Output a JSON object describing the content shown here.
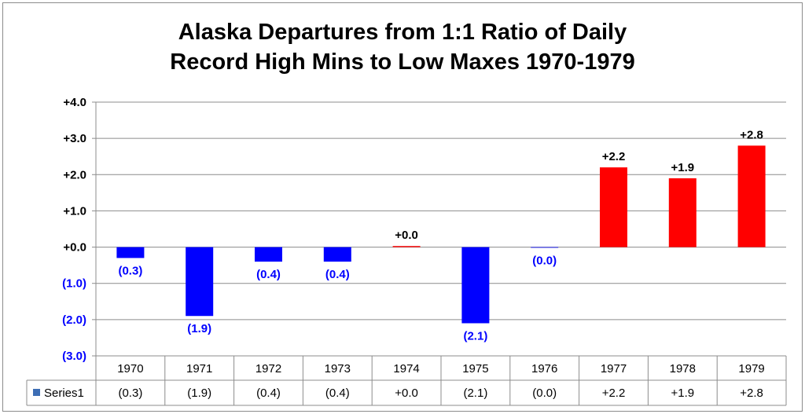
{
  "chart_data": {
    "type": "bar",
    "title_lines": [
      "Alaska Departures from 1:1 Ratio of Daily",
      "Record High Mins to Low Maxes 1970-1979"
    ],
    "categories": [
      "1970",
      "1971",
      "1972",
      "1973",
      "1974",
      "1975",
      "1976",
      "1977",
      "1978",
      "1979"
    ],
    "series": [
      {
        "name": "Series1",
        "values": [
          -0.3,
          -1.9,
          -0.4,
          -0.4,
          0.03,
          -2.1,
          -0.01,
          2.2,
          1.9,
          2.8
        ],
        "labels": [
          "(0.3)",
          "(1.9)",
          "(0.4)",
          "(0.4)",
          "+0.0",
          "(2.1)",
          "(0.0)",
          "+2.2",
          "+1.9",
          "+2.8"
        ],
        "color": "#3d6eb5"
      }
    ],
    "ylim": [
      -3.0,
      4.0
    ],
    "yticks": [
      4.0,
      3.0,
      2.0,
      1.0,
      0.0,
      -1.0,
      -2.0,
      -3.0
    ],
    "ytick_labels": [
      "+4.0",
      "+3.0",
      "+2.0",
      "+1.0",
      "+0.0",
      "(1.0)",
      "(2.0)",
      "(3.0)"
    ],
    "positive_color": "#ff0000",
    "negative_color": "#0000ff",
    "grid": true,
    "data_table": true
  }
}
